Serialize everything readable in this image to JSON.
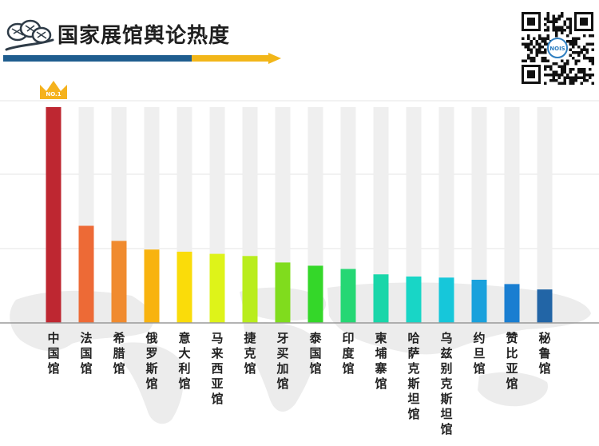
{
  "header": {
    "title": "国家展馆舆论热度",
    "badge_text": "NO.1",
    "qr_center_text": "NOIS"
  },
  "chart_data": {
    "type": "bar",
    "title": "国家展馆舆论热度",
    "xlabel": "",
    "ylabel": "",
    "ylim": [
      0,
      100
    ],
    "grid": true,
    "legend": "none",
    "top_badge": "NO.1",
    "categories": [
      "中国馆",
      "法国馆",
      "希腊馆",
      "俄罗斯馆",
      "意大利馆",
      "马来西亚馆",
      "捷克馆",
      "牙买加馆",
      "泰国馆",
      "印度馆",
      "柬埔寨馆",
      "哈萨克斯坦馆",
      "乌兹别克斯坦馆",
      "约旦馆",
      "赞比亚馆",
      "秘鲁馆"
    ],
    "values": [
      100,
      45,
      38,
      34,
      33,
      32,
      31,
      28,
      26.5,
      25,
      22.5,
      21.5,
      21,
      20,
      18,
      15.5
    ],
    "colors": [
      "#be2731",
      "#ed6a36",
      "#f08b2f",
      "#f8b30f",
      "#fadc0a",
      "#def319",
      "#b9ed1d",
      "#80dc1d",
      "#34d729",
      "#25d774",
      "#19d6a9",
      "#18d6c6",
      "#16c7da",
      "#1aa1dc",
      "#197ed1",
      "#2265a6"
    ],
    "background_bar_color": "#efefef"
  }
}
